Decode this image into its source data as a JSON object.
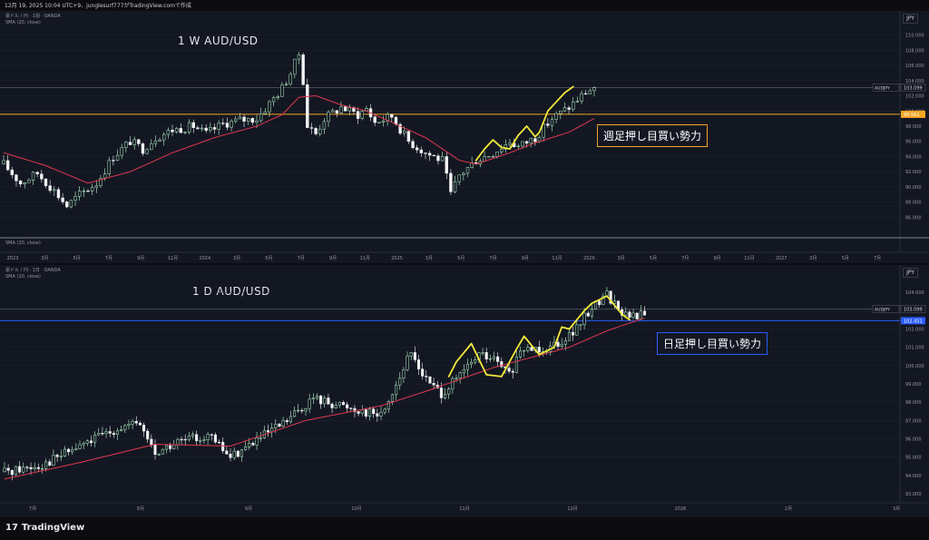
{
  "header": {
    "text": "12月 19, 2025 10:04 UTC+9、junglesurf777がTradingView.comで作成"
  },
  "footer": {
    "brand": "TradingView",
    "brand_icon": "tradingview-logo-icon"
  },
  "colors": {
    "background": "#131722",
    "up": "#b6f5c9",
    "down": "#f2f3f5",
    "sma": "#e0384f",
    "weekly_level": "#f5a623",
    "daily_level": "#2b5cff",
    "swing": "#f5ea3a",
    "price_line": "#787b86"
  },
  "chart_data": [
    {
      "type": "candlestick",
      "name": "weekly",
      "symbol_line": "豪ドル / 円 · 1週 · OANDA",
      "indicator_line": "SMA (20, close)",
      "lower_pane_label": "SMA (20, close)",
      "title": "1 W AUD/USD",
      "annotation": "週足押し目買い勢力",
      "currency": "JPY",
      "price_tag_symbol": "AUDJPY",
      "price_tag_value": "103.099",
      "level_tag_value": "99.561",
      "level": 99.561,
      "last_price": 103.099,
      "ylim": [
        84.5,
        111.5
      ],
      "y_ticks": [
        "86.000",
        "88.000",
        "90.000",
        "92.000",
        "94.000",
        "96.000",
        "98.000",
        "100.000",
        "102.000",
        "104.000",
        "106.000",
        "108.000",
        "110.000"
      ],
      "x_ticks": [
        "2023",
        "3月",
        "5月",
        "7月",
        "9月",
        "11月",
        "2024",
        "3月",
        "5月",
        "7月",
        "9月",
        "11月",
        "2025",
        "3月",
        "5月",
        "7月",
        "9月",
        "11月",
        "2026",
        "3月",
        "5月",
        "7月",
        "9月",
        "11月",
        "2027",
        "3月",
        "5月",
        "7月"
      ],
      "close_anchors": [
        [
          0,
          93
        ],
        [
          4,
          90.5
        ],
        [
          8,
          91.8
        ],
        [
          12,
          89.5
        ],
        [
          15,
          87.5
        ],
        [
          18,
          89
        ],
        [
          22,
          90.5
        ],
        [
          26,
          94
        ],
        [
          30,
          96
        ],
        [
          33,
          95
        ],
        [
          36,
          96.5
        ],
        [
          40,
          97.5
        ],
        [
          45,
          98
        ],
        [
          48,
          97
        ],
        [
          52,
          98.3
        ],
        [
          56,
          98.8
        ],
        [
          60,
          99
        ],
        [
          63,
          101
        ],
        [
          66,
          103
        ],
        [
          68,
          105
        ],
        [
          70,
          107.5
        ],
        [
          71,
          104
        ],
        [
          72,
          98
        ],
        [
          74,
          97
        ],
        [
          76,
          99
        ],
        [
          80,
          100.5
        ],
        [
          84,
          99.5
        ],
        [
          86,
          100.3
        ],
        [
          88,
          98.5
        ],
        [
          92,
          99.3
        ],
        [
          96,
          96
        ],
        [
          100,
          94.5
        ],
        [
          104,
          93.5
        ],
        [
          106,
          89
        ],
        [
          108,
          91.5
        ],
        [
          112,
          93.5
        ],
        [
          116,
          94.5
        ],
        [
          120,
          96
        ],
        [
          122,
          95.3
        ],
        [
          126,
          96.5
        ],
        [
          130,
          99
        ],
        [
          134,
          100.5
        ],
        [
          138,
          102.5
        ],
        [
          140,
          103.1
        ]
      ],
      "sma_anchors": [
        [
          0,
          94.5
        ],
        [
          10,
          92.8
        ],
        [
          20,
          90.5
        ],
        [
          30,
          92
        ],
        [
          40,
          94.5
        ],
        [
          50,
          96.5
        ],
        [
          60,
          98
        ],
        [
          66,
          99.5
        ],
        [
          70,
          101.8
        ],
        [
          74,
          102
        ],
        [
          80,
          100.8
        ],
        [
          86,
          100
        ],
        [
          92,
          98.5
        ],
        [
          100,
          96.5
        ],
        [
          108,
          93.5
        ],
        [
          112,
          93
        ],
        [
          120,
          94.5
        ],
        [
          126,
          95.8
        ],
        [
          134,
          97.2
        ],
        [
          140,
          99
        ]
      ],
      "swing_anchors": [
        [
          112,
          93.5
        ],
        [
          114,
          95
        ],
        [
          116,
          96.2
        ],
        [
          118,
          95.2
        ],
        [
          120,
          95
        ],
        [
          122,
          96.8
        ],
        [
          124,
          98
        ],
        [
          126,
          96.6
        ],
        [
          127,
          97.2
        ],
        [
          129,
          100
        ],
        [
          131,
          101.2
        ],
        [
          133,
          102.4
        ],
        [
          135,
          103.2
        ]
      ],
      "n_candles": 141
    },
    {
      "type": "candlestick",
      "name": "daily",
      "symbol_line": "豪ドル / 円 · 1日 · OANDA",
      "indicator_line": "SMA (20, close)",
      "title": "1 D AUD/USD",
      "annotation": "日足押し目買い勢力",
      "currency": "JPY",
      "price_tag_symbol": "AUDJPY",
      "price_tag_value": "103.099",
      "level_tag_value": "102.451",
      "level": 102.451,
      "last_price": 103.099,
      "ylim": [
        92.5,
        104.8
      ],
      "y_ticks": [
        "93.000",
        "94.000",
        "95.000",
        "96.000",
        "97.000",
        "98.000",
        "99.000",
        "100.000",
        "101.000",
        "102.000",
        "103.000",
        "104.000"
      ],
      "x_ticks": [
        "7月",
        "8月",
        "9月",
        "10月",
        "11月",
        "12月",
        "2026",
        "2月",
        "3月"
      ],
      "close_anchors": [
        [
          0,
          94.2
        ],
        [
          10,
          94.6
        ],
        [
          20,
          95.6
        ],
        [
          30,
          96.6
        ],
        [
          36,
          96.8
        ],
        [
          40,
          95.2
        ],
        [
          46,
          95.8
        ],
        [
          54,
          96.2
        ],
        [
          60,
          95.0
        ],
        [
          66,
          95.8
        ],
        [
          74,
          96.8
        ],
        [
          82,
          98.2
        ],
        [
          90,
          97.8
        ],
        [
          100,
          97.3
        ],
        [
          104,
          99.0
        ],
        [
          108,
          100.7
        ],
        [
          112,
          99.2
        ],
        [
          116,
          98.5
        ],
        [
          120,
          99.2
        ],
        [
          126,
          100.6
        ],
        [
          130,
          100.3
        ],
        [
          134,
          99.5
        ],
        [
          138,
          100.9
        ],
        [
          144,
          101.0
        ],
        [
          148,
          101.4
        ],
        [
          152,
          102.0
        ],
        [
          156,
          103.2
        ],
        [
          160,
          103.9
        ],
        [
          164,
          102.9
        ],
        [
          166,
          102.6
        ],
        [
          170,
          102.9
        ]
      ],
      "sma_anchors": [
        [
          0,
          93.8
        ],
        [
          20,
          94.7
        ],
        [
          40,
          95.7
        ],
        [
          60,
          95.6
        ],
        [
          80,
          97.0
        ],
        [
          100,
          97.8
        ],
        [
          112,
          98.6
        ],
        [
          130,
          99.9
        ],
        [
          150,
          101.0
        ],
        [
          160,
          101.9
        ],
        [
          170,
          102.6
        ]
      ],
      "swing_anchors": [
        [
          118,
          99.4
        ],
        [
          120,
          100.2
        ],
        [
          124,
          101.2
        ],
        [
          128,
          99.5
        ],
        [
          132,
          99.4
        ],
        [
          136,
          100.9
        ],
        [
          138,
          101.6
        ],
        [
          142,
          100.6
        ],
        [
          146,
          101.0
        ],
        [
          148,
          102.1
        ],
        [
          150,
          102.0
        ],
        [
          154,
          103.0
        ],
        [
          156,
          103.4
        ],
        [
          160,
          103.8
        ],
        [
          164,
          102.8
        ],
        [
          166,
          102.5
        ]
      ],
      "n_candles": 171
    }
  ]
}
